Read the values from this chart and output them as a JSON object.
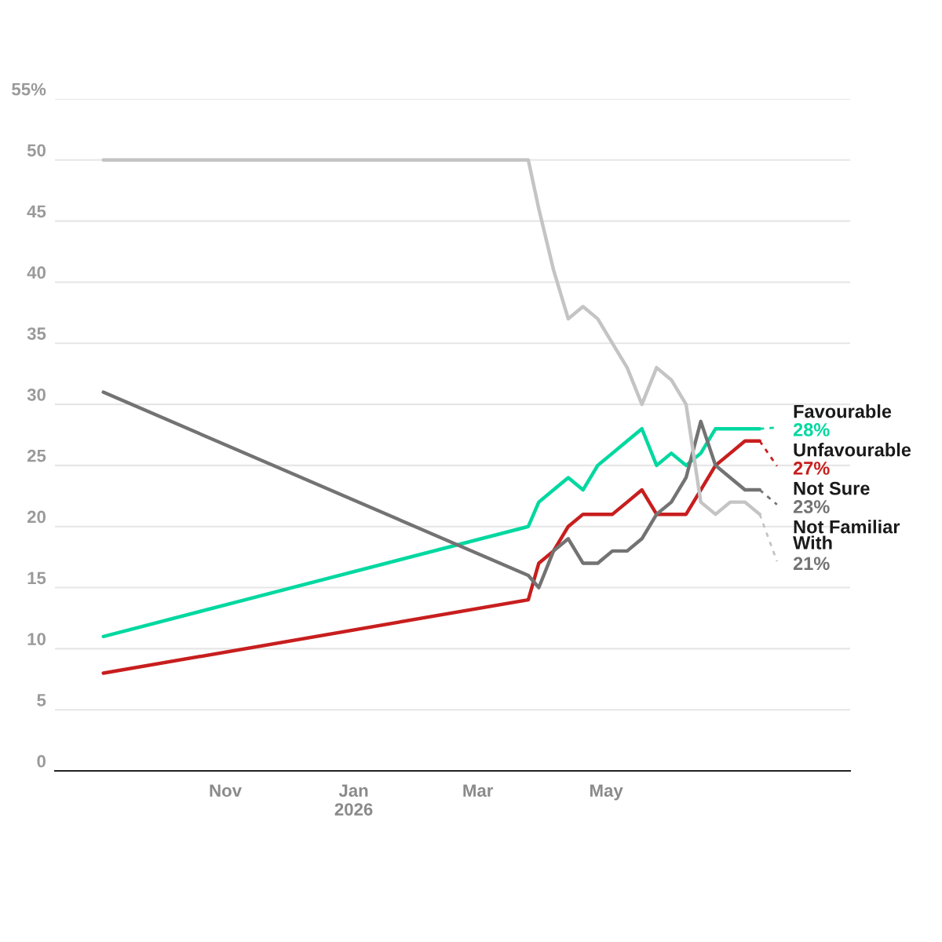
{
  "chart_data": {
    "type": "line",
    "x": [
      "2025-09-04",
      "2026-03-25",
      "2026-03-30",
      "2026-04-06",
      "2026-04-13",
      "2026-04-20",
      "2026-04-27",
      "2026-05-04",
      "2026-05-11",
      "2026-05-18",
      "2026-05-25",
      "2026-06-01",
      "2026-06-08",
      "2026-06-15",
      "2026-06-22",
      "2026-06-29",
      "2026-07-06",
      "2026-07-13"
    ],
    "series": [
      {
        "name": "Favourable",
        "color": "#00d8a0",
        "values": [
          11,
          20,
          22,
          23,
          24,
          23,
          25,
          26,
          27,
          28,
          25,
          26,
          25,
          26,
          28,
          28,
          28,
          28
        ],
        "value_labels": [
          null,
          null,
          null,
          null,
          null,
          null,
          null,
          null,
          null,
          null,
          null,
          null,
          null,
          null,
          null,
          null,
          null,
          "28%"
        ]
      },
      {
        "name": "Unfavourable",
        "color": "#c81e1e",
        "values": [
          8,
          14,
          17,
          18,
          20,
          21,
          21,
          21,
          22,
          23,
          21,
          21,
          21,
          23,
          25,
          26,
          27,
          27
        ],
        "value_labels": [
          null,
          null,
          null,
          null,
          null,
          null,
          null,
          null,
          null,
          null,
          null,
          null,
          null,
          null,
          null,
          null,
          null,
          "27%"
        ]
      },
      {
        "name": "Not Sure",
        "color": "#737373",
        "values": [
          31,
          16,
          15,
          18,
          19,
          17,
          17,
          18,
          18,
          19,
          21,
          22,
          24,
          28.6,
          25,
          24,
          23,
          23
        ],
        "value_labels": [
          null,
          null,
          null,
          null,
          null,
          null,
          null,
          null,
          null,
          null,
          null,
          null,
          null,
          null,
          null,
          null,
          null,
          "23%"
        ]
      },
      {
        "name": "Not Familiar\nWith",
        "color": "#c4c4c4",
        "values": [
          50,
          50,
          46,
          41,
          37,
          38,
          37,
          35,
          33,
          30,
          33,
          32,
          30,
          22,
          21,
          22,
          22,
          21
        ],
        "value_labels": [
          null,
          null,
          null,
          null,
          null,
          null,
          null,
          null,
          null,
          null,
          null,
          null,
          null,
          null,
          null,
          null,
          null,
          "21%"
        ]
      }
    ],
    "xlim": [
      "2025-08-12",
      "2026-08-25"
    ],
    "xticks": [
      {
        "value": "2025-11-01",
        "label": "Nov"
      },
      {
        "value": "2026-01-01",
        "label": "Jan\n2026"
      },
      {
        "value": "2026-03-01",
        "label": "Mar"
      },
      {
        "value": "2026-05-01",
        "label": "May"
      }
    ],
    "ylim": [
      0,
      55
    ],
    "yticks": [
      0,
      5,
      10,
      15,
      20,
      25,
      30,
      35,
      40,
      45,
      50,
      {
        "value": 55,
        "label": "55%"
      }
    ],
    "grid": "y",
    "legend": false,
    "marker": "none",
    "line_style": "solid"
  }
}
